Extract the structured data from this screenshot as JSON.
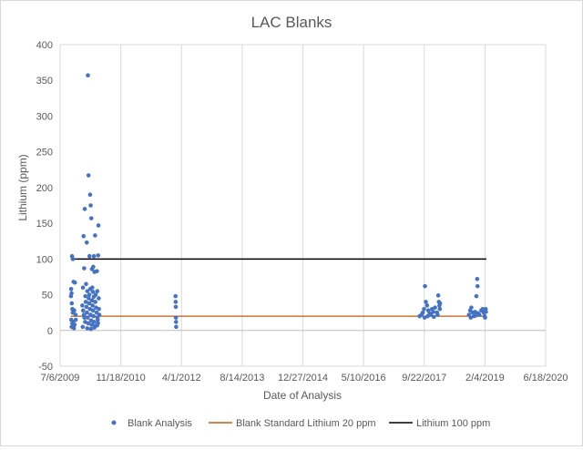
{
  "chart_data": {
    "type": "scatter",
    "title": "LAC Blanks",
    "xlabel": "Date of Analysis",
    "ylabel": "Lithium (ppm)",
    "xlim": [
      "2009-07-06",
      "2020-06-18"
    ],
    "ylim": [
      -50,
      400
    ],
    "x_ticks": [
      "7/6/2009",
      "11/18/2010",
      "4/1/2012",
      "8/14/2013",
      "12/27/2014",
      "5/10/2016",
      "9/22/2017",
      "2/4/2019",
      "6/18/2020"
    ],
    "y_ticks": [
      -50,
      0,
      50,
      100,
      150,
      200,
      250,
      300,
      350,
      400
    ],
    "grid": "vertical",
    "legend_position": "bottom",
    "colors": {
      "scatter": "#4472C4",
      "blank_line": "#C55A11",
      "lithium_line": "#000000",
      "grid": "#d9d9d9"
    },
    "series": [
      {
        "name": "Blank Analysis",
        "type": "scatter",
        "points": [
          [
            "2010-02-20",
            357
          ],
          [
            "2010-02-25",
            217
          ],
          [
            "2010-03-10",
            190
          ],
          [
            "2010-03-15",
            175
          ],
          [
            "2010-05-18",
            147
          ],
          [
            "2010-03-20",
            157
          ],
          [
            "2010-01-25",
            170
          ],
          [
            "2010-04-20",
            133
          ],
          [
            "2010-01-15",
            132
          ],
          [
            "2010-02-10",
            123
          ],
          [
            "2009-10-12",
            104
          ],
          [
            "2009-10-20",
            100
          ],
          [
            "2010-03-05",
            104
          ],
          [
            "2010-04-10",
            104
          ],
          [
            "2010-05-15",
            105
          ],
          [
            "2010-01-20",
            87
          ],
          [
            "2010-03-25",
            86
          ],
          [
            "2010-04-05",
            89
          ],
          [
            "2010-04-15",
            82
          ],
          [
            "2010-05-05",
            83
          ],
          [
            "2009-10-25",
            68
          ],
          [
            "2009-11-05",
            67
          ],
          [
            "2009-10-05",
            58
          ],
          [
            "2009-10-08",
            52
          ],
          [
            "2009-10-03",
            48
          ],
          [
            "2010-01-10",
            60
          ],
          [
            "2010-02-05",
            65
          ],
          [
            "2010-02-15",
            55
          ],
          [
            "2010-03-12",
            58
          ],
          [
            "2010-03-28",
            60
          ],
          [
            "2010-04-02",
            54
          ],
          [
            "2010-04-25",
            50
          ],
          [
            "2010-05-08",
            55
          ],
          [
            "2010-05-20",
            45
          ],
          [
            "2009-10-10",
            38
          ],
          [
            "2009-10-15",
            30
          ],
          [
            "2009-10-30",
            28
          ],
          [
            "2009-11-10",
            22
          ],
          [
            "2009-10-18",
            25
          ],
          [
            "2009-10-06",
            15
          ],
          [
            "2009-10-14",
            10
          ],
          [
            "2009-10-22",
            12
          ],
          [
            "2009-11-02",
            8
          ],
          [
            "2009-11-12",
            15
          ],
          [
            "2009-10-09",
            5
          ],
          [
            "2009-10-28",
            3
          ],
          [
            "2010-01-05",
            35
          ],
          [
            "2010-01-12",
            28
          ],
          [
            "2010-01-18",
            22
          ],
          [
            "2010-01-22",
            18
          ],
          [
            "2010-01-28",
            12
          ],
          [
            "2010-02-02",
            40
          ],
          [
            "2010-02-08",
            33
          ],
          [
            "2010-02-12",
            25
          ],
          [
            "2010-02-18",
            18
          ],
          [
            "2010-02-22",
            10
          ],
          [
            "2010-02-27",
            45
          ],
          [
            "2010-03-02",
            38
          ],
          [
            "2010-03-08",
            30
          ],
          [
            "2010-03-14",
            22
          ],
          [
            "2010-03-18",
            14
          ],
          [
            "2010-03-22",
            8
          ],
          [
            "2010-03-26",
            42
          ],
          [
            "2010-03-30",
            35
          ],
          [
            "2010-04-03",
            28
          ],
          [
            "2010-04-07",
            20
          ],
          [
            "2010-04-12",
            12
          ],
          [
            "2010-04-18",
            6
          ],
          [
            "2010-04-22",
            40
          ],
          [
            "2010-04-28",
            32
          ],
          [
            "2010-05-02",
            25
          ],
          [
            "2010-05-10",
            18
          ],
          [
            "2010-05-14",
            10
          ],
          [
            "2010-05-22",
            30
          ],
          [
            "2010-05-25",
            22
          ],
          [
            "2010-05-12",
            15
          ],
          [
            "2010-01-08",
            5
          ],
          [
            "2010-02-14",
            3
          ],
          [
            "2010-03-16",
            2
          ],
          [
            "2010-04-14",
            4
          ],
          [
            "2010-05-06",
            7
          ],
          [
            "2010-01-30",
            48
          ],
          [
            "2010-03-04",
            50
          ],
          [
            "2010-04-09",
            47
          ],
          [
            "2012-02-12",
            48
          ],
          [
            "2012-02-13",
            40
          ],
          [
            "2012-02-14",
            33
          ],
          [
            "2012-02-15",
            18
          ],
          [
            "2012-02-16",
            12
          ],
          [
            "2012-02-17",
            5
          ],
          [
            "2017-08-15",
            20
          ],
          [
            "2017-08-30",
            22
          ],
          [
            "2017-09-10",
            25
          ],
          [
            "2017-09-20",
            30
          ],
          [
            "2017-09-28",
            62
          ],
          [
            "2017-10-05",
            40
          ],
          [
            "2017-10-15",
            35
          ],
          [
            "2017-10-25",
            28
          ],
          [
            "2017-11-05",
            24
          ],
          [
            "2017-11-15",
            22
          ],
          [
            "2017-11-25",
            30
          ],
          [
            "2017-12-05",
            26
          ],
          [
            "2017-12-20",
            32
          ],
          [
            "2018-01-05",
            25
          ],
          [
            "2018-01-15",
            49
          ],
          [
            "2018-01-20",
            40
          ],
          [
            "2018-01-25",
            35
          ],
          [
            "2018-01-28",
            30
          ],
          [
            "2018-01-30",
            38
          ],
          [
            "2017-09-25",
            18
          ],
          [
            "2017-10-20",
            20
          ],
          [
            "2017-12-10",
            19
          ],
          [
            "2018-01-10",
            22
          ],
          [
            "2018-09-25",
            22
          ],
          [
            "2018-10-05",
            28
          ],
          [
            "2018-10-15",
            32
          ],
          [
            "2018-10-25",
            25
          ],
          [
            "2018-11-05",
            20
          ],
          [
            "2018-11-15",
            26
          ],
          [
            "2018-11-25",
            48
          ],
          [
            "2018-12-02",
            72
          ],
          [
            "2018-12-05",
            62
          ],
          [
            "2018-12-10",
            24
          ],
          [
            "2018-12-20",
            22
          ],
          [
            "2019-01-05",
            28
          ],
          [
            "2019-01-15",
            30
          ],
          [
            "2019-01-25",
            25
          ],
          [
            "2019-02-01",
            20
          ],
          [
            "2019-02-05",
            18
          ],
          [
            "2019-02-10",
            30
          ],
          [
            "2019-02-12",
            26
          ],
          [
            "2018-10-10",
            18
          ],
          [
            "2018-11-20",
            21
          ]
        ]
      },
      {
        "name": "Blank Standard Lithium 20 ppm",
        "type": "line",
        "points": [
          [
            "2009-10-01",
            20
          ],
          [
            "2019-02-15",
            20
          ]
        ]
      },
      {
        "name": "Lithium 100 ppm",
        "type": "line",
        "points": [
          [
            "2009-10-01",
            100
          ],
          [
            "2019-02-15",
            100
          ]
        ]
      }
    ]
  }
}
